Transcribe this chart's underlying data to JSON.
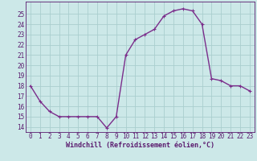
{
  "x": [
    0,
    1,
    2,
    3,
    4,
    5,
    6,
    7,
    8,
    9,
    10,
    11,
    12,
    13,
    14,
    15,
    16,
    17,
    18,
    19,
    20,
    21,
    22,
    23
  ],
  "y": [
    18,
    16.5,
    15.5,
    15,
    15,
    15,
    15,
    15,
    13.9,
    15,
    21,
    22.5,
    23,
    23.5,
    24.8,
    25.3,
    25.5,
    25.3,
    24,
    18.7,
    18.5,
    18,
    18,
    17.5
  ],
  "line_color": "#7b2d8b",
  "marker": "+",
  "marker_size": 3,
  "background_color": "#cce8e8",
  "grid_color": "#aacece",
  "xlabel": "Windchill (Refroidissement éolien,°C)",
  "ylim": [
    13.5,
    26.2
  ],
  "xlim": [
    -0.5,
    23.5
  ],
  "yticks": [
    14,
    15,
    16,
    17,
    18,
    19,
    20,
    21,
    22,
    23,
    24,
    25
  ],
  "xticks": [
    0,
    1,
    2,
    3,
    4,
    5,
    6,
    7,
    8,
    9,
    10,
    11,
    12,
    13,
    14,
    15,
    16,
    17,
    18,
    19,
    20,
    21,
    22,
    23
  ],
  "tick_color": "#5a1a6e",
  "label_fontsize": 6.0,
  "tick_fontsize": 5.5,
  "line_width": 1.0
}
